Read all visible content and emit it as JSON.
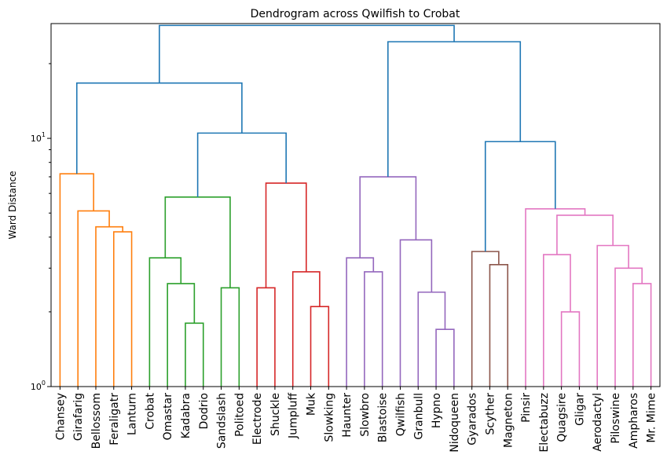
{
  "chart_data": {
    "type": "dendrogram",
    "title": "Dendrogram across Qwilfish to Crobat",
    "xlabel": "",
    "ylabel": "Ward Distance",
    "yscale": "log",
    "ylim": [
      1,
      29.0
    ],
    "yticks": [
      {
        "value": 1,
        "base": "10",
        "exp": "0"
      },
      {
        "value": 10,
        "base": "10",
        "exp": "1"
      }
    ],
    "leaves": [
      "Chansey",
      "Girafarig",
      "Bellossom",
      "Feraligatr",
      "Lanturn",
      "Crobat",
      "Omastar",
      "Kadabra",
      "Dodrio",
      "Sandslash",
      "Politoed",
      "Electrode",
      "Shuckle",
      "Jumpluff",
      "Muk",
      "Slowking",
      "Haunter",
      "Slowbro",
      "Blastoise",
      "Qwilfish",
      "Granbull",
      "Hypno",
      "Nidoqueen",
      "Gyarados",
      "Scyther",
      "Magneton",
      "Pinsir",
      "Electabuzz",
      "Quagsire",
      "Gligar",
      "Aerodactyl",
      "Piloswine",
      "Ampharos",
      "Mr. Mime"
    ],
    "colors": {
      "orange": "#ff7f0e",
      "green": "#2ca02c",
      "red": "#d62728",
      "purple": "#9467bd",
      "brown": "#8c564b",
      "pink": "#e377c2",
      "blue": "#1f77b4"
    },
    "merges": [
      {
        "id": 34,
        "left": 3,
        "right": 4,
        "height": 4.2,
        "color": "orange"
      },
      {
        "id": 35,
        "left": 2,
        "right": 34,
        "height": 4.4,
        "color": "orange"
      },
      {
        "id": 36,
        "left": 1,
        "right": 35,
        "height": 5.1,
        "color": "orange"
      },
      {
        "id": 37,
        "left": 0,
        "right": 36,
        "height": 7.2,
        "color": "orange"
      },
      {
        "id": 38,
        "left": 7,
        "right": 8,
        "height": 1.8,
        "color": "green"
      },
      {
        "id": 39,
        "left": 6,
        "right": 38,
        "height": 2.6,
        "color": "green"
      },
      {
        "id": 40,
        "left": 5,
        "right": 39,
        "height": 3.3,
        "color": "green"
      },
      {
        "id": 41,
        "left": 9,
        "right": 10,
        "height": 2.5,
        "color": "green"
      },
      {
        "id": 42,
        "left": 40,
        "right": 41,
        "height": 5.8,
        "color": "green"
      },
      {
        "id": 43,
        "left": 11,
        "right": 12,
        "height": 2.5,
        "color": "red"
      },
      {
        "id": 44,
        "left": 14,
        "right": 15,
        "height": 2.1,
        "color": "red"
      },
      {
        "id": 45,
        "left": 13,
        "right": 44,
        "height": 2.9,
        "color": "red"
      },
      {
        "id": 46,
        "left": 43,
        "right": 45,
        "height": 6.6,
        "color": "red"
      },
      {
        "id": 47,
        "left": 42,
        "right": 46,
        "height": 10.5,
        "color": "blue"
      },
      {
        "id": 48,
        "left": 37,
        "right": 47,
        "height": 16.7,
        "color": "blue"
      },
      {
        "id": 49,
        "left": 17,
        "right": 18,
        "height": 2.9,
        "color": "purple"
      },
      {
        "id": 50,
        "left": 16,
        "right": 49,
        "height": 3.3,
        "color": "purple"
      },
      {
        "id": 51,
        "left": 21,
        "right": 22,
        "height": 1.7,
        "color": "purple"
      },
      {
        "id": 52,
        "left": 20,
        "right": 51,
        "height": 2.4,
        "color": "purple"
      },
      {
        "id": 53,
        "left": 19,
        "right": 52,
        "height": 3.9,
        "color": "purple"
      },
      {
        "id": 54,
        "left": 50,
        "right": 53,
        "height": 7.0,
        "color": "purple"
      },
      {
        "id": 55,
        "left": 24,
        "right": 25,
        "height": 3.1,
        "color": "brown"
      },
      {
        "id": 56,
        "left": 23,
        "right": 55,
        "height": 3.5,
        "color": "brown"
      },
      {
        "id": 57,
        "left": 28,
        "right": 29,
        "height": 2.0,
        "color": "pink"
      },
      {
        "id": 58,
        "left": 27,
        "right": 57,
        "height": 3.4,
        "color": "pink"
      },
      {
        "id": 59,
        "left": 32,
        "right": 33,
        "height": 2.6,
        "color": "pink"
      },
      {
        "id": 60,
        "left": 31,
        "right": 59,
        "height": 3.0,
        "color": "pink"
      },
      {
        "id": 61,
        "left": 30,
        "right": 60,
        "height": 3.7,
        "color": "pink"
      },
      {
        "id": 62,
        "left": 58,
        "right": 61,
        "height": 4.9,
        "color": "pink"
      },
      {
        "id": 63,
        "left": 26,
        "right": 62,
        "height": 5.2,
        "color": "pink"
      },
      {
        "id": 64,
        "left": 56,
        "right": 63,
        "height": 9.7,
        "color": "blue"
      },
      {
        "id": 65,
        "left": 54,
        "right": 64,
        "height": 24.5,
        "color": "blue"
      },
      {
        "id": 66,
        "left": 48,
        "right": 65,
        "height": 28.5,
        "color": "blue"
      }
    ]
  }
}
